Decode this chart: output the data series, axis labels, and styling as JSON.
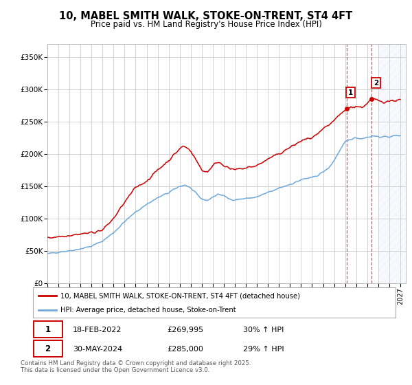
{
  "title": "10, MABEL SMITH WALK, STOKE-ON-TRENT, ST4 4FT",
  "subtitle": "Price paid vs. HM Land Registry's House Price Index (HPI)",
  "ylim": [
    0,
    370000
  ],
  "yticks": [
    0,
    50000,
    100000,
    150000,
    200000,
    250000,
    300000,
    350000
  ],
  "ytick_labels": [
    "£0",
    "£50K",
    "£100K",
    "£150K",
    "£200K",
    "£250K",
    "£300K",
    "£350K"
  ],
  "xlim_start": 1995.0,
  "xlim_end": 2027.5,
  "xticks": [
    1995,
    1996,
    1997,
    1998,
    1999,
    2000,
    2001,
    2002,
    2003,
    2004,
    2005,
    2006,
    2007,
    2008,
    2009,
    2010,
    2011,
    2012,
    2013,
    2014,
    2015,
    2016,
    2017,
    2018,
    2019,
    2020,
    2021,
    2022,
    2023,
    2024,
    2025,
    2026,
    2027
  ],
  "hpi_color": "#6fa8dc",
  "price_color": "#cc0000",
  "sale1_x": 2022.12,
  "sale1_y": 269995,
  "sale2_x": 2024.41,
  "sale2_y": 285000,
  "vline1_x": 2022.12,
  "vline2_x": 2024.41,
  "legend_line1": "10, MABEL SMITH WALK, STOKE-ON-TRENT, ST4 4FT (detached house)",
  "legend_line2": "HPI: Average price, detached house, Stoke-on-Trent",
  "table_row1": [
    "1",
    "18-FEB-2022",
    "£269,995",
    "30% ↑ HPI"
  ],
  "table_row2": [
    "2",
    "30-MAY-2024",
    "£285,000",
    "29% ↑ HPI"
  ],
  "footnote": "Contains HM Land Registry data © Crown copyright and database right 2025.\nThis data is licensed under the Open Government Licence v3.0.",
  "bg_color": "#ffffff",
  "grid_color": "#cccccc"
}
